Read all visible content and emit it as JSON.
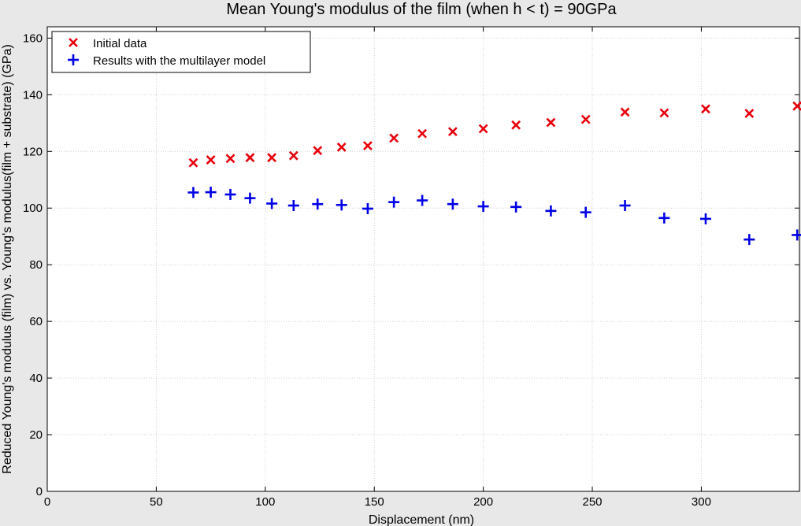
{
  "chart_data": {
    "type": "scatter",
    "title": "Mean Young's modulus of the film (when h < t) = 90GPa",
    "xlabel": "Displacement (nm)",
    "ylabel": "Reduced Young's modulus (film) vs. Young's modulus(film + substrate) (GPa)",
    "xlim": [
      0,
      345
    ],
    "ylim": [
      0,
      164
    ],
    "xticks": [
      0,
      50,
      100,
      150,
      200,
      250,
      300
    ],
    "yticks": [
      0,
      20,
      40,
      60,
      80,
      100,
      120,
      140,
      160
    ],
    "grid": true,
    "legend_position": "top-left",
    "series": [
      {
        "name": "Initial data",
        "marker": "x",
        "color": "#e8000b",
        "x": [
          67,
          75,
          84,
          93,
          103,
          113,
          124,
          135,
          147,
          159,
          172,
          186,
          200,
          215,
          231,
          247,
          265,
          283,
          302,
          322,
          344
        ],
        "y": [
          116,
          117,
          117.5,
          117.8,
          117.8,
          118.5,
          120.3,
          121.5,
          122,
          124.7,
          126.3,
          127,
          128,
          129.3,
          130.2,
          131.3,
          133.9,
          133.6,
          135,
          133.4,
          136
        ]
      },
      {
        "name": "Results with the multilayer model",
        "marker": "+",
        "color": "#0000e6",
        "x": [
          67,
          75,
          84,
          93,
          103,
          113,
          124,
          135,
          147,
          159,
          172,
          186,
          200,
          215,
          231,
          247,
          265,
          283,
          302,
          322,
          344
        ],
        "y": [
          105.5,
          105.6,
          104.8,
          103.5,
          101.6,
          100.9,
          101.4,
          101.1,
          99.8,
          102.1,
          102.7,
          101.4,
          100.6,
          100.4,
          99,
          98.5,
          100.9,
          96.5,
          96.2,
          88.9,
          90.5
        ]
      }
    ]
  }
}
